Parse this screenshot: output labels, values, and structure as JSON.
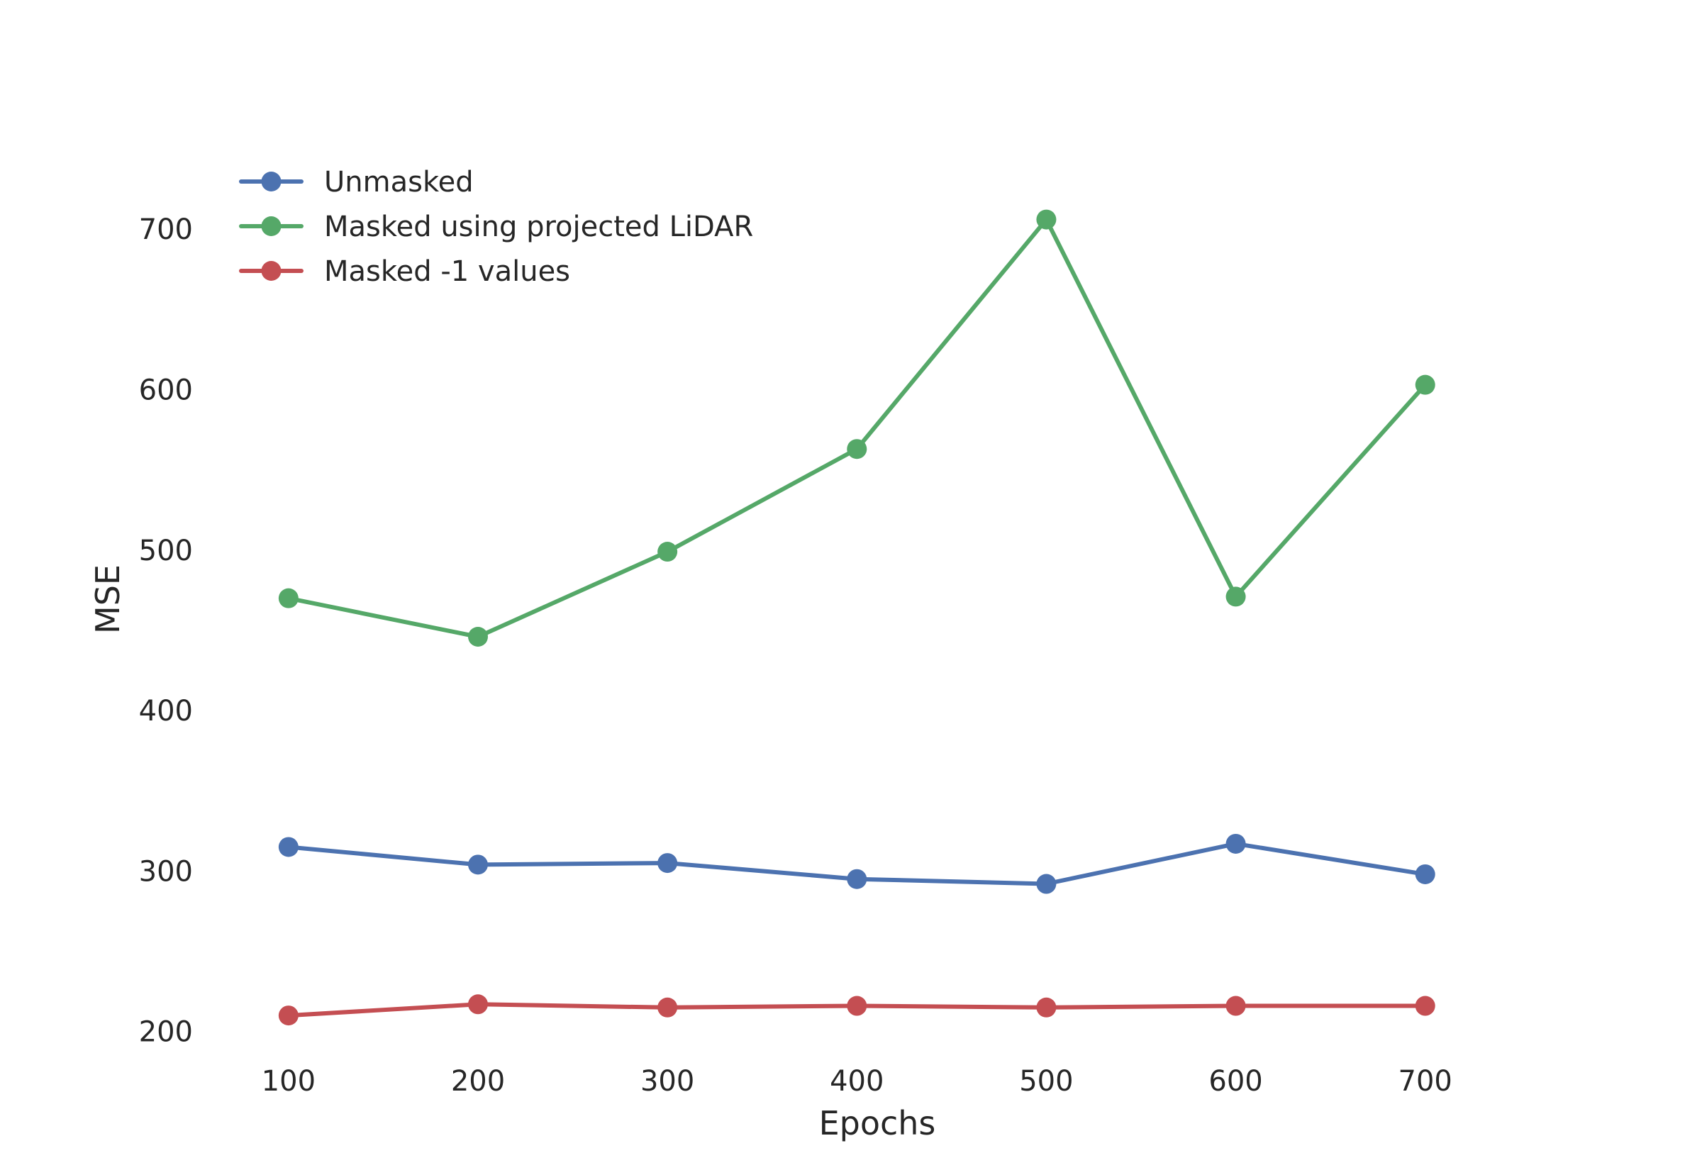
{
  "chart_data": {
    "type": "line",
    "title": "",
    "xlabel": "Epochs",
    "ylabel": "MSE",
    "x": [
      100,
      200,
      300,
      400,
      500,
      600,
      700
    ],
    "xlim": [
      60,
      760
    ],
    "ylim": [
      180,
      750
    ],
    "xticks": [
      "100",
      "200",
      "300",
      "400",
      "500",
      "600",
      "700"
    ],
    "yticks": [
      "200",
      "300",
      "400",
      "500",
      "600",
      "700"
    ],
    "grid": false,
    "legend_position": "top-left",
    "series": [
      {
        "name": "Unmasked",
        "color": "#4c72b0",
        "values": [
          315,
          304,
          305,
          295,
          292,
          317,
          298
        ]
      },
      {
        "name": "Masked using projected LiDAR",
        "color": "#55a868",
        "values": [
          470,
          446,
          499,
          563,
          706,
          471,
          603
        ]
      },
      {
        "name": "Masked -1 values",
        "color": "#c44e52",
        "values": [
          210,
          217,
          215,
          216,
          215,
          216,
          216
        ]
      }
    ]
  }
}
